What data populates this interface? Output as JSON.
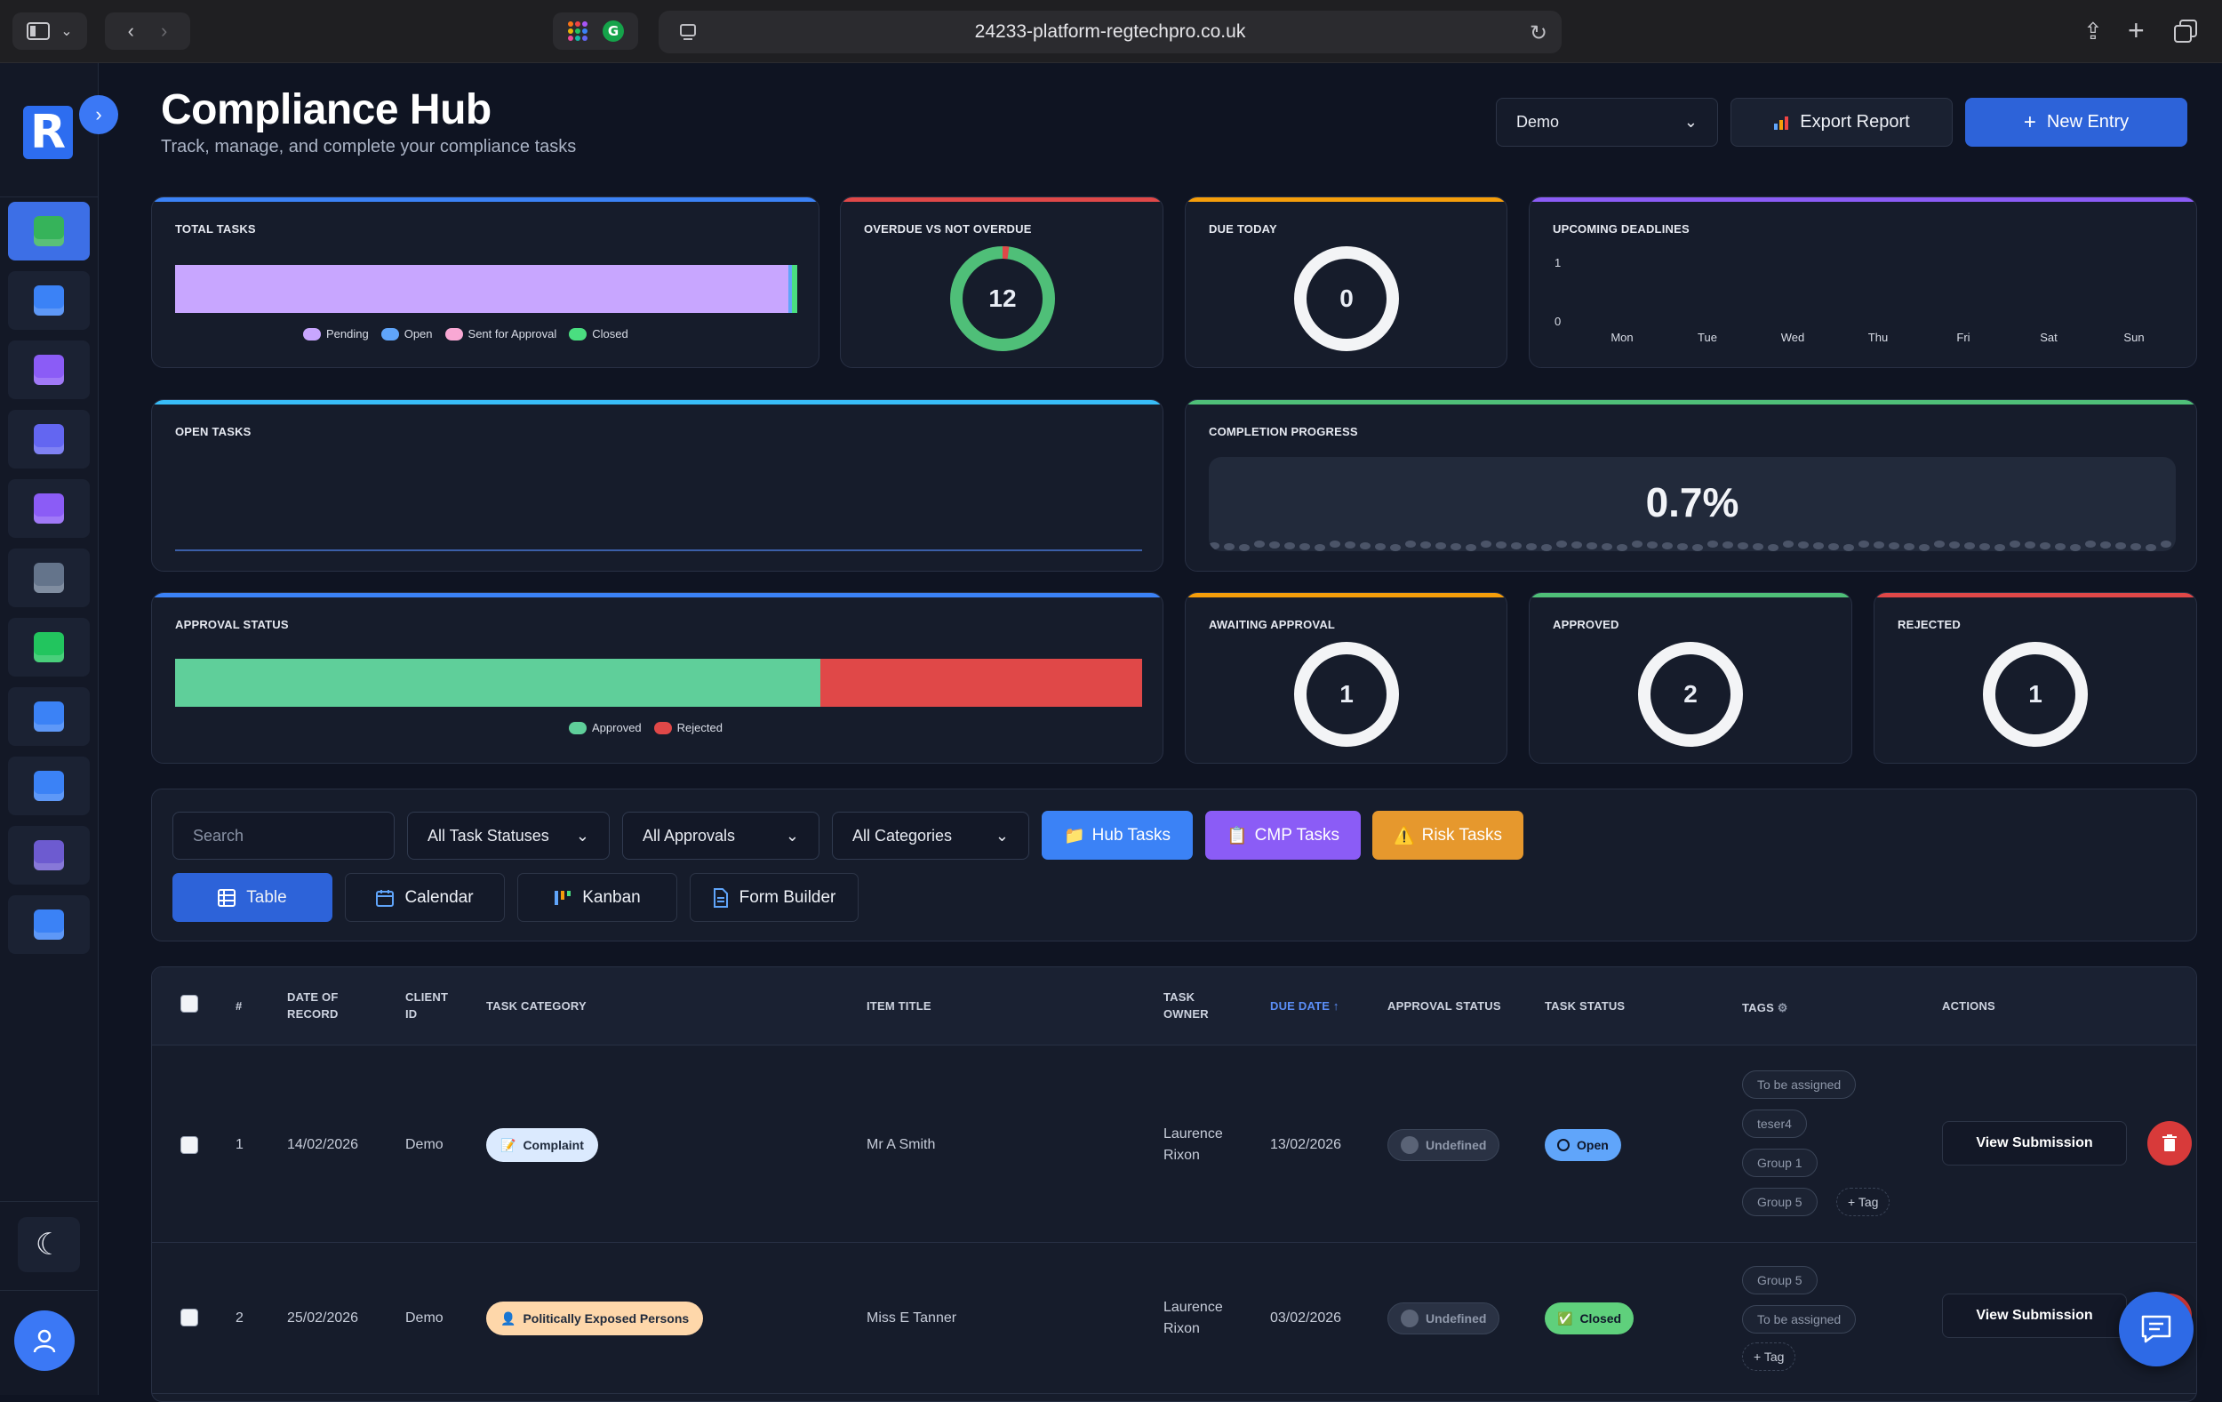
{
  "browser": {
    "url": "24233-platform-regtechpro.co.uk"
  },
  "sidebar": {
    "brand_letter": "R",
    "items": [
      {
        "name": "tasks",
        "color": "#36b35a",
        "active": true
      },
      {
        "name": "building",
        "color": "#3b82f6"
      },
      {
        "name": "users",
        "color": "#8b5cf6"
      },
      {
        "name": "shield",
        "color": "#6366f1"
      },
      {
        "name": "clipboard",
        "color": "#8b5cf6"
      },
      {
        "name": "list",
        "color": "#64748b"
      },
      {
        "name": "card",
        "color": "#22c55e"
      },
      {
        "name": "chart",
        "color": "#3b82f6"
      },
      {
        "name": "edit-doc",
        "color": "#3b82f6"
      },
      {
        "name": "numbered-list",
        "color": "#6d5bd0"
      },
      {
        "name": "monitor",
        "color": "#3b82f6"
      }
    ]
  },
  "header": {
    "title": "Compliance Hub",
    "subtitle": "Track, manage, and complete your compliance tasks",
    "client_select": "Demo",
    "export_label": "Export Report",
    "new_entry_label": "New Entry"
  },
  "cards": {
    "total_tasks": {
      "title": "TOTAL TASKS",
      "legend": [
        "Pending",
        "Open",
        "Sent for Approval",
        "Closed"
      ],
      "colors": [
        "#c8a6ff",
        "#60a5fa",
        "#f9a8d4",
        "#4ade80"
      ],
      "fractions": [
        0.985,
        0.007,
        0.0,
        0.008
      ]
    },
    "overdue": {
      "title": "OVERDUE VS NOT OVERDUE",
      "value": "12",
      "overdue_fraction": 0.02
    },
    "due_today": {
      "title": "DUE TODAY",
      "value": "0"
    },
    "upcoming": {
      "title": "UPCOMING DEADLINES",
      "y_ticks": [
        "1",
        "0"
      ],
      "days": [
        "Mon",
        "Tue",
        "Wed",
        "Thu",
        "Fri",
        "Sat",
        "Sun"
      ]
    },
    "open_tasks": {
      "title": "OPEN TASKS"
    },
    "completion": {
      "title": "COMPLETION PROGRESS",
      "value": "0.7%"
    },
    "approval_status": {
      "title": "APPROVAL STATUS",
      "legend": [
        "Approved",
        "Rejected"
      ],
      "colors": [
        "#5fcf9a",
        "#e04848"
      ],
      "approved_fraction": 0.667
    },
    "awaiting": {
      "title": "AWAITING APPROVAL",
      "value": "1"
    },
    "approved": {
      "title": "APPROVED",
      "value": "2"
    },
    "rejected": {
      "title": "REJECTED",
      "value": "1"
    }
  },
  "filters": {
    "search_placeholder": "Search",
    "task_status": "All Task Statuses",
    "approvals": "All Approvals",
    "categories": "All Categories",
    "hub_tasks": "Hub Tasks",
    "cmp_tasks": "CMP Tasks",
    "risk_tasks": "Risk Tasks",
    "views": [
      "Table",
      "Calendar",
      "Kanban",
      "Form Builder"
    ]
  },
  "table": {
    "headers": {
      "num": "#",
      "date": "DATE OF RECORD",
      "client": "CLIENT ID",
      "category": "TASK CATEGORY",
      "title": "ITEM TITLE",
      "owner": "TASK OWNER",
      "due": "DUE DATE ↑",
      "approval": "APPROVAL STATUS",
      "status": "TASK STATUS",
      "tags": "TAGS",
      "actions": "ACTIONS"
    },
    "rows": [
      {
        "num": "1",
        "date": "14/02/2026",
        "client": "Demo",
        "category": "Complaint",
        "title": "Mr A Smith",
        "owner_line1": "Laurence",
        "owner_line2": "Rixon",
        "due": "13/02/2026",
        "approval": "Undefined",
        "status": "Open",
        "tags": [
          "To be assigned",
          "teser4",
          "Group 1",
          "Group 5"
        ],
        "add_tag": "+ Tag",
        "action": "View Submission"
      },
      {
        "num": "2",
        "date": "25/02/2026",
        "client": "Demo",
        "category": "Politically Exposed Persons",
        "title": "Miss E Tanner",
        "owner_line1": "Laurence",
        "owner_line2": "Rixon",
        "due": "03/02/2026",
        "approval": "Undefined",
        "status": "Closed",
        "tags": [
          "Group 5",
          "To be assigned"
        ],
        "add_tag": "+ Tag",
        "action": "View Submission"
      }
    ]
  }
}
